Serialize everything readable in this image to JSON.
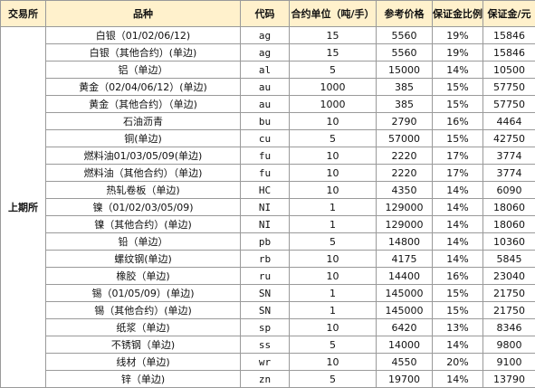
{
  "chart_data": {
    "type": "table",
    "columns": [
      "交易所",
      "品种",
      "代码",
      "合约单位（吨/手）",
      "参考价格",
      "保证金比例",
      "保证金/元"
    ],
    "exchange": "上期所",
    "rows": [
      [
        "白银（01/02/06/12)",
        "ag",
        "15",
        "5560",
        "19%",
        "15846"
      ],
      [
        "白银（其他合约）(单边)",
        "ag",
        "15",
        "5560",
        "19%",
        "15846"
      ],
      [
        "铝（单边）",
        "al",
        "5",
        "15000",
        "14%",
        "10500"
      ],
      [
        "黄金（02/04/06/12）(单边)",
        "au",
        "1000",
        "385",
        "15%",
        "57750"
      ],
      [
        "黄金（其他合约）（单边)",
        "au",
        "1000",
        "385",
        "15%",
        "57750"
      ],
      [
        "石油沥青",
        "bu",
        "10",
        "2790",
        "16%",
        "4464"
      ],
      [
        "铜(单边)",
        "cu",
        "5",
        "57000",
        "15%",
        "42750"
      ],
      [
        "燃料油01/03/05/09(单边)",
        "fu",
        "10",
        "2220",
        "17%",
        "3774"
      ],
      [
        "燃料油（其他合约）（单边)",
        "fu",
        "10",
        "2220",
        "17%",
        "3774"
      ],
      [
        "热轧卷板（单边)",
        "HC",
        "10",
        "4350",
        "14%",
        "6090"
      ],
      [
        "镍（01/02/03/05/09)",
        "NI",
        "1",
        "129000",
        "14%",
        "18060"
      ],
      [
        "镍（其他合约）(单边)",
        "NI",
        "1",
        "129000",
        "14%",
        "18060"
      ],
      [
        "铅（单边）",
        "pb",
        "5",
        "14800",
        "14%",
        "10360"
      ],
      [
        "螺纹钢(单边)",
        "rb",
        "10",
        "4175",
        "14%",
        "5845"
      ],
      [
        "橡胶（单边)",
        "ru",
        "10",
        "14400",
        "16%",
        "23040"
      ],
      [
        "锡（01/05/09）(单边)",
        "SN",
        "1",
        "145000",
        "15%",
        "21750"
      ],
      [
        "锡（其他合约）(单边)",
        "SN",
        "1",
        "145000",
        "15%",
        "21750"
      ],
      [
        "纸浆（单边)",
        "sp",
        "10",
        "6420",
        "13%",
        "8346"
      ],
      [
        "不锈钢（单边)",
        "ss",
        "5",
        "14000",
        "14%",
        "9800"
      ],
      [
        "线材（单边)",
        "wr",
        "10",
        "4550",
        "20%",
        "9100"
      ],
      [
        "锌（单边)",
        "zn",
        "5",
        "19700",
        "14%",
        "13790"
      ]
    ]
  },
  "colors": {
    "header_bg": "#fff1cc",
    "border": "#9a9a9a"
  }
}
